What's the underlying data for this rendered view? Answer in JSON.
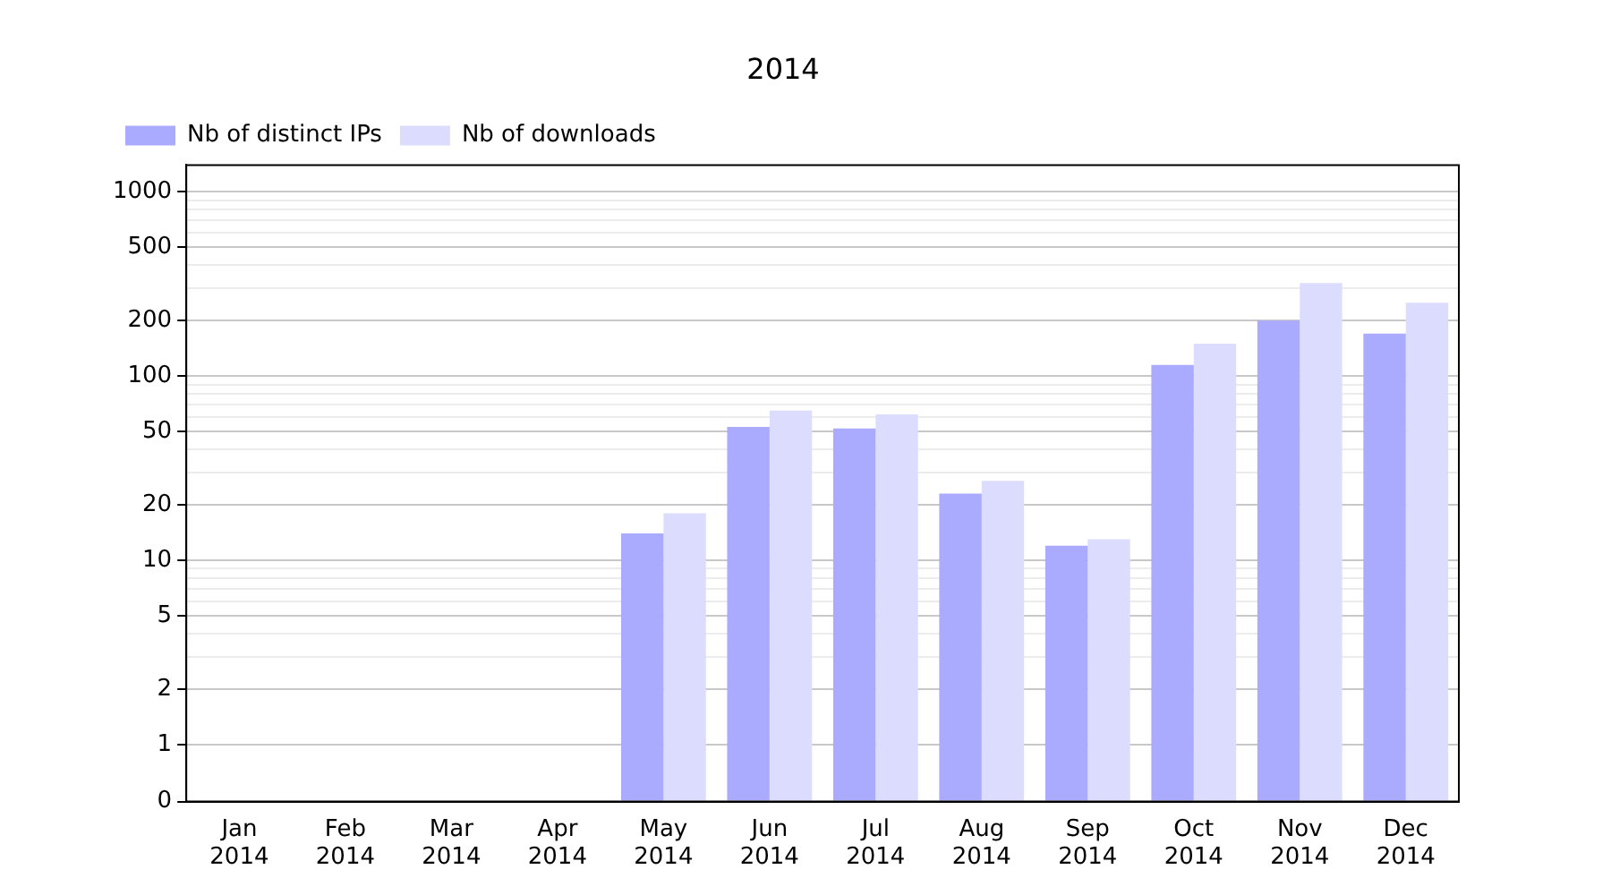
{
  "chart_data": {
    "type": "bar",
    "title": "2014",
    "categories": [
      "Jan 2014",
      "Feb 2014",
      "Mar 2014",
      "Apr 2014",
      "May 2014",
      "Jun 2014",
      "Jul 2014",
      "Aug 2014",
      "Sep 2014",
      "Oct 2014",
      "Nov 2014",
      "Dec 2014"
    ],
    "series": [
      {
        "name": "Nb of distinct IPs",
        "color": "#aaaaff",
        "values": [
          0,
          0,
          0,
          0,
          14,
          53,
          52,
          23,
          12,
          115,
          200,
          170
        ]
      },
      {
        "name": "Nb of downloads",
        "color": "#dcdcff",
        "values": [
          0,
          0,
          0,
          0,
          18,
          65,
          62,
          27,
          13,
          150,
          320,
          250
        ]
      }
    ],
    "log": "y",
    "ylim": [
      0,
      1400
    ],
    "yticks": [
      0,
      1,
      2,
      {
        "value": 3,
        "label": null
      },
      {
        "value": 4,
        "label": null
      },
      5,
      {
        "value": 6,
        "label": null
      },
      {
        "value": 7,
        "label": null
      },
      {
        "value": 8,
        "label": null
      },
      {
        "value": 9,
        "label": null
      },
      10,
      20,
      {
        "value": 30,
        "label": null
      },
      {
        "value": 40,
        "label": null
      },
      50,
      {
        "value": 60,
        "label": null
      },
      {
        "value": 70,
        "label": null
      },
      {
        "value": 80,
        "label": null
      },
      {
        "value": 90,
        "label": null
      },
      100,
      200,
      {
        "value": 300,
        "label": null
      },
      {
        "value": 400,
        "label": null
      },
      500,
      {
        "value": 600,
        "label": null
      },
      {
        "value": 700,
        "label": null
      },
      {
        "value": 800,
        "label": null
      },
      {
        "value": 900,
        "label": null
      },
      1000
    ],
    "grid": "y",
    "legend": "top left"
  }
}
